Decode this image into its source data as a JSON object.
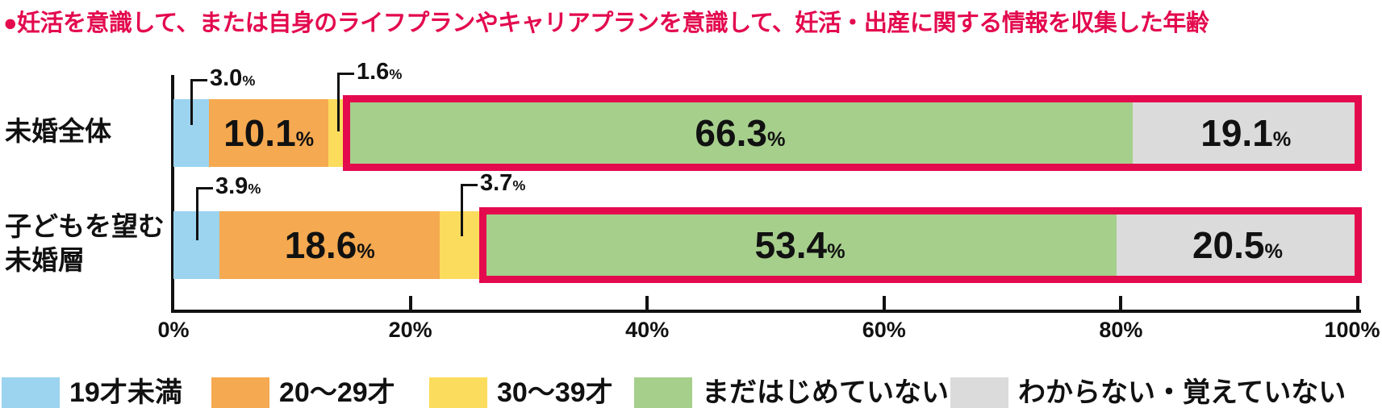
{
  "title": "●妊活を意識して、または自身のライフプランやキャリアプランを意識して、妊活・出産に関する情報を収集した年齢",
  "accent_color": "#e30a4e",
  "text_color": "#111111",
  "chart_data": {
    "type": "bar",
    "orientation": "horizontal_stacked",
    "title": "妊活を意識して、または自身のライフプランやキャリアプランを意識して、妊活・出産に関する情報を収集した年齢",
    "categories": [
      "未婚全体",
      "子どもを望む未婚層"
    ],
    "category_label_lines": [
      [
        "未婚全体"
      ],
      [
        "子どもを望む",
        "未婚層"
      ]
    ],
    "series": [
      {
        "name": "19才未満",
        "color": "#9cd3ef",
        "values": [
          3.0,
          3.9
        ]
      },
      {
        "name": "20〜29才",
        "color": "#f5a950",
        "values": [
          10.1,
          18.6
        ]
      },
      {
        "name": "30〜39才",
        "color": "#fcdc5c",
        "values": [
          1.6,
          3.7
        ]
      },
      {
        "name": "まだはじめていない",
        "color": "#a6cf8c",
        "values": [
          66.3,
          53.4
        ]
      },
      {
        "name": "わからない・覚えていない",
        "color": "#dbdbdb",
        "values": [
          19.1,
          20.5
        ]
      }
    ],
    "xlim": [
      0,
      100
    ],
    "x_ticks": [
      "0%",
      "20%",
      "40%",
      "60%",
      "80%",
      "100%"
    ],
    "grid": false,
    "legend_position": "bottom",
    "highlight_box": {
      "series": [
        "まだはじめていない",
        "わからない・覚えていない"
      ],
      "color": "#e30a4e"
    },
    "value_suffix": "%"
  }
}
